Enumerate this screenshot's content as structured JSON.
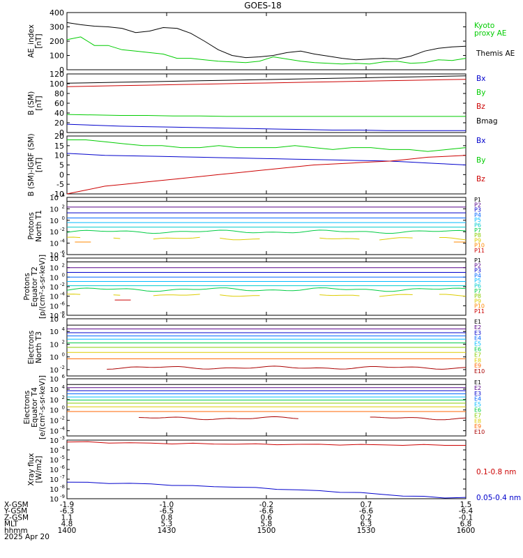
{
  "title": "GOES-18",
  "time_axis": {
    "rows": [
      {
        "label": "X-GSM",
        "values": [
          "-1.9",
          "-1.0",
          "-0.2",
          "0.7",
          "1.5"
        ]
      },
      {
        "label": "Y-GSM",
        "values": [
          "-6.3",
          "-6.5",
          "-6.6",
          "-6.6",
          "-6.4"
        ]
      },
      {
        "label": "Z-GSM",
        "values": [
          "1.1",
          "0.8",
          "0.6",
          "0.2",
          "-0.1"
        ]
      },
      {
        "label": "MLT",
        "values": [
          "4.8",
          "5.3",
          "5.8",
          "6.3",
          "6.8"
        ]
      },
      {
        "label": "hhmm",
        "values": [
          "1400",
          "1430",
          "1500",
          "1530",
          "1600"
        ]
      }
    ],
    "date": "2025 Apr 20"
  },
  "chart_data": [
    {
      "type": "line",
      "ylabel": "AE_index\n[nT]",
      "ylim": [
        0,
        400
      ],
      "yticks": [
        "400",
        "300",
        "200",
        "100",
        "0"
      ],
      "legend": [
        {
          "name": "Kyoto\nproxy AE",
          "color": "#00cc00"
        },
        {
          "name": "Themis AE",
          "color": "#000000"
        }
      ],
      "series": [
        {
          "name": "Themis AE",
          "color": "#000000",
          "y": [
            330,
            315,
            305,
            300,
            290,
            260,
            270,
            295,
            290,
            255,
            200,
            140,
            100,
            85,
            90,
            100,
            120,
            130,
            110,
            95,
            80,
            70,
            75,
            80,
            75,
            95,
            130,
            150,
            160,
            165
          ]
        },
        {
          "name": "Kyoto proxy AE",
          "color": "#00cc00",
          "y": [
            210,
            230,
            170,
            170,
            140,
            130,
            120,
            110,
            80,
            80,
            70,
            60,
            55,
            50,
            60,
            90,
            75,
            60,
            50,
            45,
            40,
            45,
            40,
            55,
            60,
            45,
            50,
            70,
            65,
            80
          ]
        }
      ]
    },
    {
      "type": "line",
      "ylabel": "B (SM)\n[nT]",
      "ylim": [
        0,
        120
      ],
      "yticks": [
        "120",
        "100",
        "80",
        "60",
        "40",
        "20",
        "0"
      ],
      "legend": [
        {
          "name": "Bx",
          "color": "#0000cc"
        },
        {
          "name": "By",
          "color": "#00cc00"
        },
        {
          "name": "Bz",
          "color": "#cc0000"
        },
        {
          "name": "Bmag",
          "color": "#000000"
        }
      ],
      "series": [
        {
          "name": "Bmag",
          "color": "#000000",
          "y": [
            101,
            102,
            103,
            104,
            105,
            106,
            107,
            108,
            109,
            110,
            111,
            112,
            113,
            114,
            115,
            116
          ]
        },
        {
          "name": "Bz",
          "color": "#cc0000",
          "y": [
            94,
            95,
            96,
            97,
            98,
            99,
            100,
            101,
            102,
            103,
            104,
            105,
            106,
            107,
            108,
            109
          ]
        },
        {
          "name": "By",
          "color": "#00cc00",
          "y": [
            37,
            36,
            35,
            35,
            34,
            34,
            33,
            33,
            33,
            33,
            33,
            33,
            33,
            33,
            33,
            33
          ]
        },
        {
          "name": "Bx",
          "color": "#0000cc",
          "y": [
            17,
            15,
            13,
            12,
            11,
            10,
            9,
            8,
            7,
            6,
            5,
            5,
            4,
            4,
            4,
            4
          ]
        }
      ]
    },
    {
      "type": "line",
      "ylabel": "B (SM)-IGRF (SM)\n[nT]",
      "ylim": [
        -10,
        20
      ],
      "yticks": [
        "20",
        "15",
        "10",
        "5",
        "0",
        "-5",
        "-10"
      ],
      "legend": [
        {
          "name": "Bx",
          "color": "#0000cc"
        },
        {
          "name": "By",
          "color": "#00cc00"
        },
        {
          "name": "Bz",
          "color": "#cc0000"
        }
      ],
      "series": [
        {
          "name": "By",
          "color": "#00cc00",
          "y": [
            18,
            18,
            17,
            16,
            15,
            15,
            14,
            14,
            15,
            14,
            14,
            14,
            15,
            14,
            13,
            14,
            14,
            13,
            13,
            12,
            13,
            14
          ]
        },
        {
          "name": "Bx",
          "color": "#0000cc",
          "y": [
            11,
            10.5,
            10,
            9.8,
            9.6,
            9.4,
            9.2,
            9,
            8.8,
            8.6,
            8.4,
            8.2,
            8,
            7.8,
            7.6,
            7.4,
            7.2,
            7,
            6.5,
            6,
            5.5,
            5
          ]
        },
        {
          "name": "Bz",
          "color": "#cc0000",
          "y": [
            -10,
            -8,
            -6,
            -5,
            -4,
            -3,
            -2,
            -1,
            0,
            1,
            2,
            3,
            4,
            5,
            5.5,
            6,
            6.5,
            7,
            8,
            9,
            9.5,
            10
          ]
        }
      ]
    },
    {
      "type": "line",
      "log": true,
      "ylabel": "Protons\nNorth T1",
      "ylim": [
        -6,
        4
      ],
      "ytick_labels": [
        {
          "b": "10",
          "e": "4",
          "v": 4
        },
        {
          "b": "10",
          "e": "2",
          "v": 2
        },
        {
          "b": "10",
          "e": "0",
          "v": 0
        },
        {
          "b": "10",
          "e": "-2",
          "v": -2
        },
        {
          "b": "10",
          "e": "-4",
          "v": -4
        },
        {
          "b": "10",
          "e": "-6",
          "v": -6
        }
      ],
      "legend": [
        {
          "name": "P1",
          "color": "#000000"
        },
        {
          "name": "P2",
          "color": "#550088"
        },
        {
          "name": "P3",
          "color": "#0000cc"
        },
        {
          "name": "P4",
          "color": "#0066ff"
        },
        {
          "name": "P5",
          "color": "#00bbff"
        },
        {
          "name": "P6",
          "color": "#00cccc"
        },
        {
          "name": "P7",
          "color": "#00cc44"
        },
        {
          "name": "P8",
          "color": "#88cc00"
        },
        {
          "name": "P9",
          "color": "#ddcc00"
        },
        {
          "name": "P10",
          "color": "#ff8800"
        },
        {
          "name": "P11",
          "color": "#cc0000"
        }
      ],
      "series": [
        {
          "name": "P1",
          "color": "#000000",
          "level": 3.3
        },
        {
          "name": "P2",
          "color": "#550088",
          "level": 2.3
        },
        {
          "name": "P3",
          "color": "#0000cc",
          "level": 1.3
        },
        {
          "name": "P4",
          "color": "#0066ff",
          "level": 0.4
        },
        {
          "name": "P5",
          "color": "#00bbff",
          "level": -0.4
        },
        {
          "name": "P6",
          "color": "#00cccc",
          "level": -1.2
        },
        {
          "name": "P7",
          "color": "#00cc44",
          "level": -2.0,
          "wave": 0.3
        },
        {
          "name": "P8",
          "color": "#ddcc00",
          "level": -3.2,
          "wave": 0.3,
          "gaps": true
        },
        {
          "name": "P9",
          "color": "#ff8800",
          "level": -3.8,
          "segments": [
            [
              0.02,
              0.06
            ],
            [
              0.97,
              1.0
            ]
          ]
        }
      ]
    },
    {
      "type": "line",
      "log": true,
      "ylabel": "Protons\nEquator T2\n[p/(cm²-s-sr-keV)]",
      "ylim": [
        -8,
        4
      ],
      "ytick_labels": [
        {
          "b": "10",
          "e": "4",
          "v": 4
        },
        {
          "b": "10",
          "e": "2",
          "v": 2
        },
        {
          "b": "10",
          "e": "0",
          "v": 0
        },
        {
          "b": "10",
          "e": "-2",
          "v": -2
        },
        {
          "b": "10",
          "e": "-4",
          "v": -4
        },
        {
          "b": "10",
          "e": "-6",
          "v": -6
        },
        {
          "b": "10",
          "e": "-8",
          "v": -8
        }
      ],
      "legend": [
        {
          "name": "P1",
          "color": "#000000"
        },
        {
          "name": "P2",
          "color": "#550088"
        },
        {
          "name": "P3",
          "color": "#0000cc"
        },
        {
          "name": "P4",
          "color": "#0066ff"
        },
        {
          "name": "P5",
          "color": "#00bbff"
        },
        {
          "name": "P6",
          "color": "#00cccc"
        },
        {
          "name": "P7",
          "color": "#00cc44"
        },
        {
          "name": "P8",
          "color": "#88cc00"
        },
        {
          "name": "P9",
          "color": "#ddcc00"
        },
        {
          "name": "P10",
          "color": "#ff8800"
        },
        {
          "name": "P11",
          "color": "#cc0000"
        }
      ],
      "series": [
        {
          "name": "P1",
          "color": "#000000",
          "level": 3.2
        },
        {
          "name": "P2",
          "color": "#550088",
          "level": 2.0
        },
        {
          "name": "P3",
          "color": "#0000cc",
          "level": 1.0
        },
        {
          "name": "P4",
          "color": "#0066ff",
          "level": 0.0
        },
        {
          "name": "P5",
          "color": "#00bbff",
          "level": -0.9
        },
        {
          "name": "P6",
          "color": "#00cccc",
          "level": -1.8
        },
        {
          "name": "P7",
          "color": "#00cc44",
          "level": -2.6,
          "wave": 0.4
        },
        {
          "name": "P8",
          "color": "#ddcc00",
          "level": -3.8,
          "wave": 0.3,
          "gaps": true
        },
        {
          "name": "P10",
          "color": "#cc0000",
          "level": -4.8,
          "segments": [
            [
              0.12,
              0.16
            ]
          ]
        }
      ]
    },
    {
      "type": "line",
      "log": true,
      "ylabel": "Electrons\nNorth T3",
      "ylim": [
        -3,
        6
      ],
      "ytick_labels": [
        {
          "b": "10",
          "e": "6",
          "v": 6
        },
        {
          "b": "10",
          "e": "4",
          "v": 4
        },
        {
          "b": "10",
          "e": "2",
          "v": 2
        },
        {
          "b": "10",
          "e": "0",
          "v": 0
        },
        {
          "b": "10",
          "e": "-2",
          "v": -2
        }
      ],
      "legend": [
        {
          "name": "E1",
          "color": "#000000"
        },
        {
          "name": "E2",
          "color": "#550088"
        },
        {
          "name": "E3",
          "color": "#0000cc"
        },
        {
          "name": "E4",
          "color": "#0066ff"
        },
        {
          "name": "E5",
          "color": "#00bbff"
        },
        {
          "name": "E6",
          "color": "#00cc44"
        },
        {
          "name": "E7",
          "color": "#88cc00"
        },
        {
          "name": "E8",
          "color": "#ddcc00"
        },
        {
          "name": "E9",
          "color": "#ff6600"
        },
        {
          "name": "E10",
          "color": "#aa0000"
        }
      ],
      "series": [
        {
          "name": "E1",
          "color": "#000000",
          "level": 5.0
        },
        {
          "name": "E2",
          "color": "#550088",
          "level": 4.4
        },
        {
          "name": "E3",
          "color": "#0000cc",
          "level": 3.8
        },
        {
          "name": "E4",
          "color": "#0066ff",
          "level": 3.3
        },
        {
          "name": "E5",
          "color": "#00bbff",
          "level": 2.8
        },
        {
          "name": "E6",
          "color": "#00cc44",
          "level": 2.2
        },
        {
          "name": "E7",
          "color": "#88cc00",
          "level": 1.5
        },
        {
          "name": "E8",
          "color": "#ddcc00",
          "level": 0.7
        },
        {
          "name": "E9",
          "color": "#ff6600",
          "level": -0.3
        },
        {
          "name": "E10",
          "color": "#aa0000",
          "level": -1.7,
          "wave": 0.25,
          "start": 0.1
        }
      ]
    },
    {
      "type": "line",
      "log": true,
      "ylabel": "Electrons\nEquator T4\n[e/(cm²-s-sr-keV)]",
      "ylim": [
        -5,
        6
      ],
      "ytick_labels": [
        {
          "b": "10",
          "e": "6",
          "v": 6
        },
        {
          "b": "10",
          "e": "4",
          "v": 4
        },
        {
          "b": "10",
          "e": "2",
          "v": 2
        },
        {
          "b": "10",
          "e": "0",
          "v": 0
        },
        {
          "b": "10",
          "e": "-2",
          "v": -2
        },
        {
          "b": "10",
          "e": "-4",
          "v": -4
        }
      ],
      "legend": [
        {
          "name": "E1",
          "color": "#000000"
        },
        {
          "name": "E2",
          "color": "#550088"
        },
        {
          "name": "E3",
          "color": "#0000cc"
        },
        {
          "name": "E4",
          "color": "#0066ff"
        },
        {
          "name": "E5",
          "color": "#00bbff"
        },
        {
          "name": "E6",
          "color": "#00cc44"
        },
        {
          "name": "E7",
          "color": "#88cc00"
        },
        {
          "name": "E8",
          "color": "#ddcc00"
        },
        {
          "name": "E9",
          "color": "#ff6600"
        },
        {
          "name": "E10",
          "color": "#aa0000"
        }
      ],
      "series": [
        {
          "name": "E1",
          "color": "#000000",
          "level": 4.9
        },
        {
          "name": "E2",
          "color": "#550088",
          "level": 4.3
        },
        {
          "name": "E3",
          "color": "#0000cc",
          "level": 3.7
        },
        {
          "name": "E4",
          "color": "#0066ff",
          "level": 3.1
        },
        {
          "name": "E5",
          "color": "#00bbff",
          "level": 2.5
        },
        {
          "name": "E6",
          "color": "#00cc44",
          "level": 1.9
        },
        {
          "name": "E7",
          "color": "#88cc00",
          "level": 1.3
        },
        {
          "name": "E8",
          "color": "#ddcc00",
          "level": 0.6
        },
        {
          "name": "E9",
          "color": "#ff6600",
          "level": -0.3
        },
        {
          "name": "E10",
          "color": "#aa0000",
          "level": -1.6,
          "wave": 0.3,
          "segments": [
            [
              0.18,
              0.58
            ],
            [
              0.76,
              1.0
            ]
          ]
        }
      ]
    },
    {
      "type": "line",
      "log": true,
      "ylabel": "Xray flux\n[W/m2]",
      "ylim": [
        -9,
        -3
      ],
      "ytick_labels": [
        {
          "b": "10",
          "e": "-3",
          "v": -3
        },
        {
          "b": "10",
          "e": "-4",
          "v": -4
        },
        {
          "b": "10",
          "e": "-5",
          "v": -5
        },
        {
          "b": "10",
          "e": "-6",
          "v": -6
        },
        {
          "b": "10",
          "e": "-7",
          "v": -7
        },
        {
          "b": "10",
          "e": "-8",
          "v": -8
        },
        {
          "b": "10",
          "e": "-9",
          "v": -9
        }
      ],
      "legend": [
        {
          "name": "0.1-0.8 nm",
          "color": "#cc0000"
        },
        {
          "name": "0.05-0.4 nm",
          "color": "#0000cc"
        }
      ],
      "series": [
        {
          "name": "0.1-0.8 nm",
          "color": "#cc0000",
          "y": [
            -3.2,
            -3.2,
            -3.25,
            -3.3,
            -3.32,
            -3.35,
            -3.36,
            -3.38,
            -3.4,
            -3.42,
            -3.43,
            -3.44,
            -3.45,
            -3.46,
            -3.47,
            -3.48,
            -3.5,
            -3.5,
            -3.51,
            -3.52
          ]
        },
        {
          "name": "0.05-0.4 nm",
          "color": "#0000cc",
          "y": [
            -7.3,
            -7.35,
            -7.4,
            -7.45,
            -7.5,
            -7.6,
            -7.7,
            -7.75,
            -7.8,
            -7.9,
            -8.0,
            -8.1,
            -8.2,
            -8.3,
            -8.4,
            -8.55,
            -8.7,
            -8.8,
            -8.9,
            -8.85
          ]
        }
      ]
    }
  ]
}
